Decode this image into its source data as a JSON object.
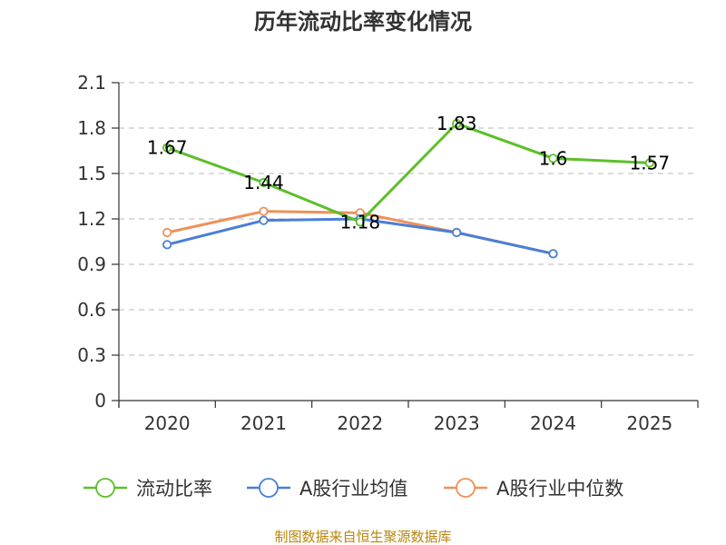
{
  "chart_data": {
    "type": "line",
    "title": "历年流动比率变化情况",
    "categories": [
      "2020",
      "2021",
      "2022",
      "2023",
      "2024",
      "2025"
    ],
    "y_ticks": [
      "0",
      "0.3",
      "0.6",
      "0.9",
      "1.2",
      "1.5",
      "1.8",
      "2.1"
    ],
    "ylim": [
      0,
      2.1
    ],
    "grid": true,
    "legend_position": "bottom",
    "series": [
      {
        "name": "流动比率",
        "color": "#5cbf2a",
        "values": [
          1.67,
          1.44,
          1.18,
          1.83,
          1.6,
          1.57
        ],
        "labels": [
          "1.67",
          "1.44",
          "1.18",
          "1.83",
          "1.6",
          "1.57"
        ]
      },
      {
        "name": "A股行业均值",
        "color": "#4a7fd6",
        "values": [
          1.03,
          1.19,
          1.2,
          1.11,
          0.97,
          null
        ]
      },
      {
        "name": "A股行业中位数",
        "color": "#f0905a",
        "values": [
          1.11,
          1.25,
          1.24,
          1.11,
          0.97,
          null
        ]
      }
    ]
  },
  "footer": {
    "source": "制图数据来自恒生聚源数据库"
  }
}
